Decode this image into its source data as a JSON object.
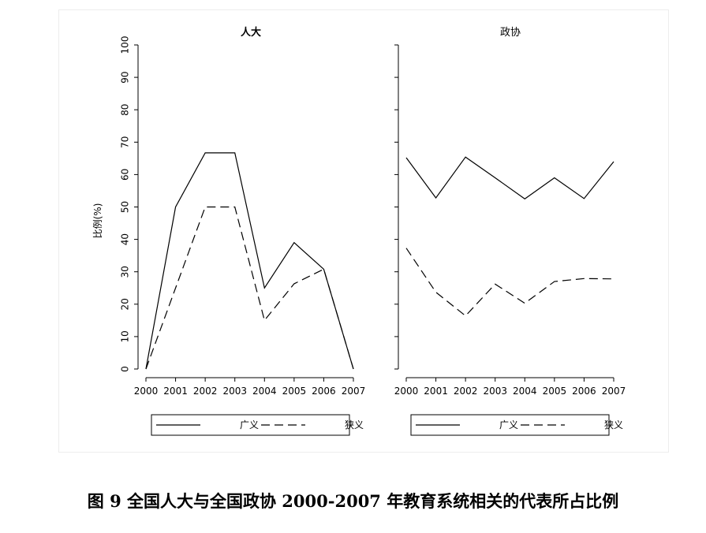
{
  "caption": "图 9  全国人大与全国政协 2000-2007 年教育系统相关的代表所占比例",
  "chart_data": {
    "type": "line",
    "ylabel": "比例(%)",
    "ylim": [
      0,
      100
    ],
    "yticks": [
      0,
      10,
      20,
      30,
      40,
      50,
      60,
      70,
      80,
      90,
      100
    ],
    "categories": [
      "2000",
      "2001",
      "2002",
      "2003",
      "2004",
      "2005",
      "2006",
      "2007"
    ],
    "panels": [
      {
        "title": "人大",
        "series": [
          {
            "name": "广义",
            "style": "solid",
            "values": [
              0,
              50,
              66.7,
              66.7,
              25,
              39,
              30.8,
              0
            ]
          },
          {
            "name": "狭义",
            "style": "dashed",
            "values": [
              0,
              25,
              50,
              50,
              15,
              26.3,
              30.8,
              0
            ]
          }
        ]
      },
      {
        "title": "政协",
        "series": [
          {
            "name": "广义",
            "style": "solid",
            "values": [
              65.2,
              52.8,
              65.4,
              59,
              52.5,
              59,
              52.6,
              64
            ]
          },
          {
            "name": "狭义",
            "style": "dashed",
            "values": [
              37.3,
              23.7,
              16.4,
              26.2,
              20.3,
              27,
              27.9,
              27.8
            ]
          }
        ]
      }
    ],
    "legend": [
      "广义",
      "狭义"
    ],
    "grid": false,
    "colors": {
      "line": "#000000"
    }
  }
}
